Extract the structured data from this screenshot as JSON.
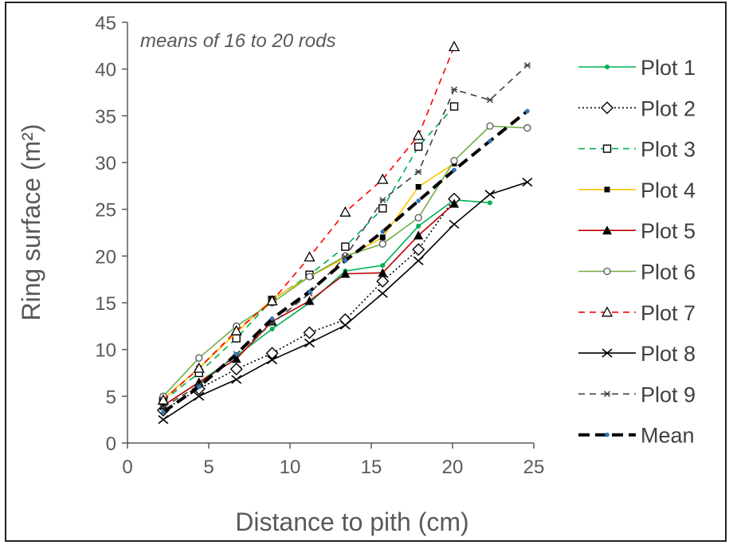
{
  "chart_data": {
    "type": "line",
    "title": "",
    "annotation": "means of 16 to 20 rods",
    "xlabel": "Distance to pith (cm)",
    "ylabel": "Ring surface (m²)",
    "xlim": [
      0,
      25
    ],
    "ylim": [
      0,
      45
    ],
    "xticks": [
      0,
      5,
      10,
      15,
      20,
      25
    ],
    "yticks": [
      0,
      5,
      10,
      15,
      20,
      25,
      30,
      35,
      40,
      45
    ],
    "grid": false,
    "legend_position": "right",
    "series": [
      {
        "name": "Plot 1",
        "color": "#00b050",
        "dash": "solid",
        "marker": "dot",
        "points": [
          [
            2.2,
            4.0
          ],
          [
            4.4,
            6.5
          ],
          [
            6.7,
            9.3
          ],
          [
            8.9,
            12.2
          ],
          [
            11.2,
            15.0
          ],
          [
            13.4,
            18.4
          ],
          [
            15.7,
            19.0
          ],
          [
            17.9,
            23.2
          ],
          [
            20.1,
            26.0
          ],
          [
            22.3,
            25.7
          ]
        ]
      },
      {
        "name": "Plot 2",
        "color": "#000000",
        "dash": "dot",
        "marker": "diamond",
        "points": [
          [
            2.2,
            3.5
          ],
          [
            4.4,
            5.8
          ],
          [
            6.7,
            7.9
          ],
          [
            8.9,
            9.6
          ],
          [
            11.2,
            11.8
          ],
          [
            13.4,
            13.2
          ],
          [
            15.7,
            17.3
          ],
          [
            17.9,
            20.7
          ],
          [
            20.1,
            26.1
          ]
        ]
      },
      {
        "name": "Plot 3",
        "color": "#00b050",
        "dash": "dash",
        "marker": "square",
        "points": [
          [
            2.2,
            4.5
          ],
          [
            4.4,
            7.5
          ],
          [
            6.7,
            11.2
          ],
          [
            8.9,
            15.3
          ],
          [
            11.2,
            18.0
          ],
          [
            13.4,
            21.0
          ],
          [
            15.7,
            25.1
          ],
          [
            17.9,
            31.7
          ],
          [
            20.1,
            36.0
          ]
        ]
      },
      {
        "name": "Plot 4",
        "color": "#ffc000",
        "dash": "solid",
        "marker": "square-small",
        "points": [
          [
            2.2,
            4.7
          ],
          [
            4.4,
            8.0
          ],
          [
            6.7,
            11.8
          ],
          [
            8.9,
            15.4
          ],
          [
            11.2,
            17.8
          ],
          [
            13.4,
            19.8
          ],
          [
            15.7,
            22.0
          ],
          [
            17.9,
            27.4
          ],
          [
            20.1,
            29.9
          ]
        ]
      },
      {
        "name": "Plot 5",
        "color": "#c00000",
        "dash": "solid",
        "marker": "triangle",
        "points": [
          [
            2.2,
            4.0
          ],
          [
            4.4,
            6.5
          ],
          [
            6.7,
            9.0
          ],
          [
            8.9,
            13.0
          ],
          [
            11.2,
            15.2
          ],
          [
            13.4,
            18.1
          ],
          [
            15.7,
            18.2
          ],
          [
            17.9,
            22.2
          ],
          [
            20.1,
            25.6
          ]
        ]
      },
      {
        "name": "Plot 6",
        "color": "#70ad47",
        "dash": "solid",
        "marker": "circle",
        "points": [
          [
            2.2,
            5.0
          ],
          [
            4.4,
            9.1
          ],
          [
            6.7,
            12.5
          ],
          [
            8.9,
            15.0
          ],
          [
            11.2,
            17.8
          ],
          [
            13.4,
            20.0
          ],
          [
            15.7,
            21.3
          ],
          [
            17.9,
            24.1
          ],
          [
            20.1,
            30.2
          ],
          [
            22.3,
            33.9
          ],
          [
            24.6,
            33.7
          ]
        ]
      },
      {
        "name": "Plot 7",
        "color": "#ff0000",
        "dash": "dash",
        "marker": "triangle-open",
        "points": [
          [
            2.2,
            4.6
          ],
          [
            4.4,
            8.0
          ],
          [
            6.7,
            12.0
          ],
          [
            8.9,
            15.2
          ],
          [
            11.2,
            19.9
          ],
          [
            13.4,
            24.7
          ],
          [
            15.7,
            28.2
          ],
          [
            17.9,
            32.9
          ],
          [
            20.1,
            42.4
          ]
        ]
      },
      {
        "name": "Plot 8",
        "color": "#000000",
        "dash": "solid",
        "marker": "x",
        "points": [
          [
            2.2,
            2.5
          ],
          [
            4.4,
            5.0
          ],
          [
            6.7,
            6.8
          ],
          [
            8.9,
            8.9
          ],
          [
            11.2,
            10.7
          ],
          [
            13.4,
            12.6
          ],
          [
            15.7,
            16.0
          ],
          [
            17.9,
            19.5
          ],
          [
            20.1,
            23.4
          ],
          [
            22.3,
            26.6
          ],
          [
            24.6,
            27.9
          ]
        ]
      },
      {
        "name": "Plot 9",
        "color": "#404040",
        "dash": "dash",
        "marker": "star",
        "points": [
          [
            2.2,
            3.8
          ],
          [
            4.4,
            6.2
          ],
          [
            6.7,
            9.5
          ],
          [
            8.9,
            12.8
          ],
          [
            11.2,
            16.0
          ],
          [
            13.4,
            19.9
          ],
          [
            15.7,
            26.0
          ],
          [
            17.9,
            29.0
          ],
          [
            20.1,
            37.8
          ],
          [
            22.3,
            36.7
          ],
          [
            24.6,
            40.4
          ]
        ]
      },
      {
        "name": "Mean",
        "color": "#000000",
        "dash": "longdash",
        "marker": "dot-blue",
        "points": [
          [
            2.2,
            3.3
          ],
          [
            4.4,
            6.0
          ],
          [
            6.7,
            9.5
          ],
          [
            8.9,
            13.3
          ],
          [
            11.2,
            16.2
          ],
          [
            13.4,
            19.5
          ],
          [
            15.7,
            22.6
          ],
          [
            17.9,
            25.9
          ],
          [
            20.1,
            29.2
          ],
          [
            22.3,
            32.3
          ],
          [
            24.6,
            35.5
          ]
        ]
      }
    ]
  }
}
